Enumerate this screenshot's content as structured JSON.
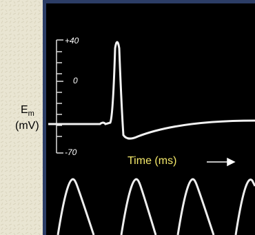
{
  "y_axis": {
    "symbol": "E",
    "subscript": "m",
    "unit": "(mV)",
    "ticks": [
      "+40",
      "0",
      "-70"
    ]
  },
  "x_axis_label": "Time (ms)"
}
